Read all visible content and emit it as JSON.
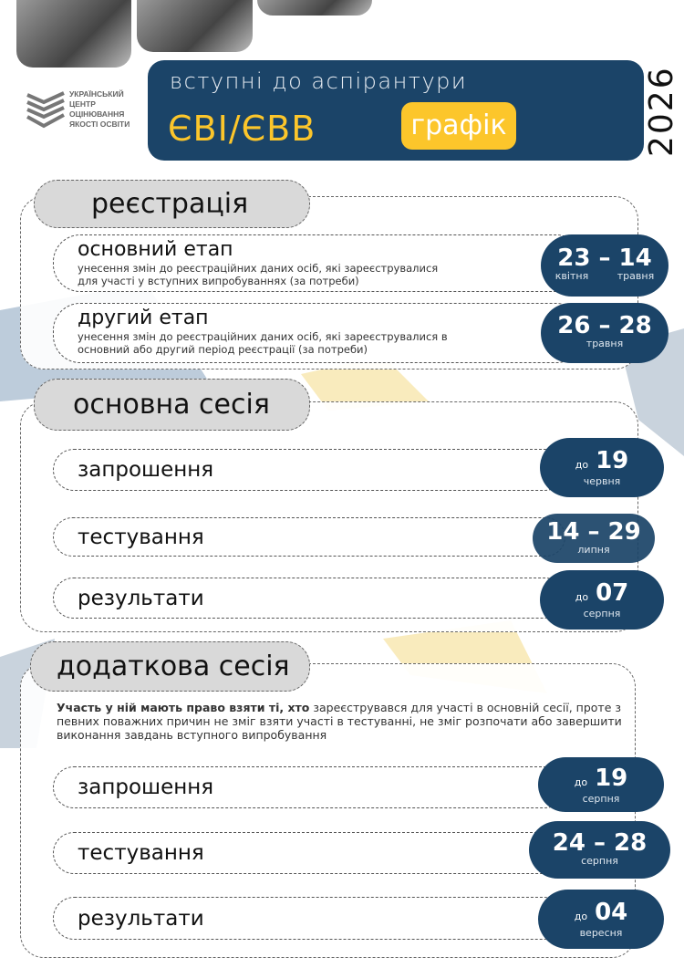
{
  "header": {
    "subtitle": "вступні до аспірантури",
    "title": "ЄВІ/ЄВВ",
    "badge": "графік",
    "year": "2026",
    "logo_lines": [
      "УКРАЇНСЬКИЙ",
      "ЦЕНТР",
      "ОЦІНЮВАННЯ",
      "ЯКОСТІ ОСВІТИ"
    ]
  },
  "colors": {
    "navy": "#1b4468",
    "yellow": "#fcc62b",
    "tab_grey": "#d9d9d9"
  },
  "registration": {
    "title": "реєстрація",
    "items": [
      {
        "label": "основний етап",
        "desc1": "унесення змін до реєстраційних даних осіб, які зареєструвалися",
        "desc2": "для участі у вступних випробуваннях (за потреби)",
        "date": "23 – 14",
        "month_from": "квітня",
        "month_to": "травня"
      },
      {
        "label": "другий етап",
        "desc1": "унесення змін до реєстраційних даних осіб, які зареєструвалися в",
        "desc2": "основний або другий період реєстрації (за потреби)",
        "date": "26 – 28",
        "month": "травня"
      }
    ]
  },
  "main_session": {
    "title": "основна сесія",
    "items": [
      {
        "label": "запрошення",
        "prefix": "до",
        "date": "19",
        "month": "червня"
      },
      {
        "label": "тестування",
        "date": "14 – 29",
        "month": "липня"
      },
      {
        "label": "результати",
        "prefix": "до",
        "date": "07",
        "month": "серпня"
      }
    ]
  },
  "extra_session": {
    "title": "додаткова сесія",
    "note_bold": "Участь у ній мають право взяти ті, хто",
    "note_rest": " зареєструвався для участі в основній сесії, проте з певних поважних причин не зміг взяти участі в тестуванні, не зміг розпочати або завершити виконання завдань вступного випробування",
    "items": [
      {
        "label": "запрошення",
        "prefix": "до",
        "date": "19",
        "month": "серпня"
      },
      {
        "label": "тестування",
        "date": "24 – 28",
        "month": "серпня"
      },
      {
        "label": "результати",
        "prefix": "до",
        "date": "04",
        "month": "вересня"
      }
    ]
  }
}
